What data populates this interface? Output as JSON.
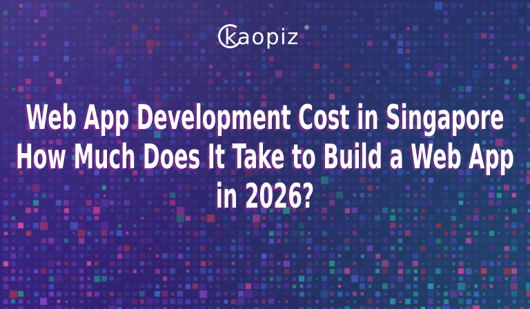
{
  "banner": {
    "logo": {
      "text": "kaopiz",
      "registered_mark": "®"
    },
    "headline": {
      "lines": [
        "Web App Development Cost in Singapore",
        "How Much Does It Take to Build a Web App",
        "in 2026?"
      ],
      "text_color": "#ffffff",
      "ghost_shadow_color": "#bb2d9e"
    },
    "background": {
      "base_top": "#34306c",
      "base_mid": "#2f2769",
      "base_bottom": "#29215f",
      "corner_top_left": "#6a4ab8",
      "corner_top_right": "#1c2a66",
      "corner_bottom_left": "#4a22a8",
      "corner_bottom_right": "#156a74",
      "faint_cell_color": "#8a8aff",
      "mosaic_palette": {
        "purples": [
          "#6b3fae",
          "#8445c9",
          "#5b2da0",
          "#4c3a9e"
        ],
        "magentas": [
          "#b23a9a",
          "#d0439a",
          "#8a2f6e",
          "#c2376e",
          "#e0559a"
        ],
        "blues": [
          "#3a4fc0",
          "#2f6fd0",
          "#4a51c2",
          "#2b3a9a",
          "#5b6ae0"
        ],
        "teals": [
          "#2e9fb8",
          "#27b59b",
          "#1f7fa0",
          "#2c8f7a"
        ],
        "reds": [
          "#c23a55",
          "#a03050"
        ]
      }
    }
  }
}
